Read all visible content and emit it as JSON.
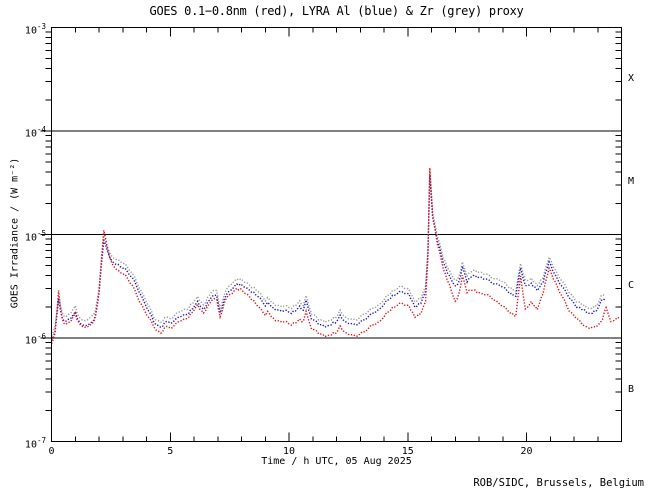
{
  "title": "GOES 0.1−0.8nm (red), LYRA Al (blue) & Zr (grey) proxy",
  "credit": "ROB/SIDC, Brussels, Belgium",
  "flare_classes": [
    "X",
    "M",
    "C",
    "B"
  ],
  "colors": {
    "goes_red": "#dd1111",
    "lyra_al_blue": "#1414cc",
    "lyra_zr_grey": "#9a9a9a",
    "axis": "#000000",
    "background": "#ffffff"
  },
  "chart_data": {
    "type": "line",
    "title": "GOES 0.1−0.8nm (red), LYRA Al (blue) & Zr (grey) proxy",
    "xlabel": "Time / h UTC, 05 Aug 2025",
    "ylabel": "GOES Irradiance / (W m⁻²)",
    "x_unit": "hours UTC",
    "xlim": [
      0,
      24
    ],
    "x_major_ticks": [
      0,
      5,
      10,
      15,
      20
    ],
    "x_tick_labels": [
      "0",
      "5",
      "10",
      "15",
      "20"
    ],
    "x_minor_step": 1,
    "y_scale": "log",
    "ylim": [
      1e-07,
      0.001
    ],
    "y_tick_exponents": [
      -3,
      -4,
      -5,
      -6,
      -7
    ],
    "hlines": [
      0.0001,
      1e-05,
      1e-06
    ],
    "grid": "off",
    "legend": "in-title",
    "flare_class_bands": {
      "X": [
        0.0001,
        0.001
      ],
      "M": [
        1e-05,
        0.0001
      ],
      "C": [
        1e-06,
        1e-05
      ],
      "B": [
        1e-07,
        1e-06
      ]
    },
    "series": [
      {
        "name": "LYRA Zr proxy",
        "color_key": "lyra_zr_grey",
        "points": [
          [
            0.0,
            1.05e-06
          ],
          [
            0.15,
            1.3e-06
          ],
          [
            0.3,
            2.45e-06
          ],
          [
            0.45,
            1.75e-06
          ],
          [
            0.6,
            1.6e-06
          ],
          [
            0.8,
            1.75e-06
          ],
          [
            1.0,
            2e-06
          ],
          [
            1.15,
            1.6e-06
          ],
          [
            1.4,
            1.45e-06
          ],
          [
            1.7,
            1.6e-06
          ],
          [
            1.85,
            1.85e-06
          ],
          [
            2.0,
            3e-06
          ],
          [
            2.1,
            5.5e-06
          ],
          [
            2.2,
            9.6e-06
          ],
          [
            2.35,
            7.7e-06
          ],
          [
            2.55,
            6.1e-06
          ],
          [
            2.8,
            5.6e-06
          ],
          [
            3.1,
            5.2e-06
          ],
          [
            3.4,
            4.2e-06
          ],
          [
            3.7,
            3.1e-06
          ],
          [
            4.0,
            2.25e-06
          ],
          [
            4.3,
            1.6e-06
          ],
          [
            4.6,
            1.4e-06
          ],
          [
            4.85,
            1.6e-06
          ],
          [
            5.0,
            1.55e-06
          ],
          [
            5.4,
            1.8e-06
          ],
          [
            5.7,
            1.9e-06
          ],
          [
            5.95,
            2.2e-06
          ],
          [
            6.15,
            2.45e-06
          ],
          [
            6.4,
            2.1e-06
          ],
          [
            6.75,
            2.8e-06
          ],
          [
            6.95,
            2.9e-06
          ],
          [
            7.1,
            1.95e-06
          ],
          [
            7.35,
            2.9e-06
          ],
          [
            7.6,
            3.4e-06
          ],
          [
            7.8,
            3.7e-06
          ],
          [
            8.05,
            3.6e-06
          ],
          [
            8.35,
            3.25e-06
          ],
          [
            8.7,
            2.8e-06
          ],
          [
            9.0,
            2.35e-06
          ],
          [
            9.1,
            2.45e-06
          ],
          [
            9.35,
            2.1e-06
          ],
          [
            9.7,
            2.05e-06
          ],
          [
            10.1,
            1.95e-06
          ],
          [
            10.45,
            2.25e-06
          ],
          [
            10.6,
            2e-06
          ],
          [
            10.72,
            2.55e-06
          ],
          [
            10.95,
            1.75e-06
          ],
          [
            11.25,
            1.5e-06
          ],
          [
            11.6,
            1.45e-06
          ],
          [
            11.95,
            1.55e-06
          ],
          [
            12.15,
            1.85e-06
          ],
          [
            12.4,
            1.55e-06
          ],
          [
            12.8,
            1.5e-06
          ],
          [
            13.2,
            1.7e-06
          ],
          [
            13.5,
            1.95e-06
          ],
          [
            13.8,
            2.05e-06
          ],
          [
            14.1,
            2.55e-06
          ],
          [
            14.45,
            2.9e-06
          ],
          [
            14.75,
            3.2e-06
          ],
          [
            15.05,
            2.9e-06
          ],
          [
            15.3,
            2.25e-06
          ],
          [
            15.55,
            2.45e-06
          ],
          [
            15.75,
            3.1e-06
          ],
          [
            15.85,
            7.2e-06
          ],
          [
            15.93,
            4.1e-05
          ],
          [
            16.05,
            1.6e-05
          ],
          [
            16.25,
            9.7e-06
          ],
          [
            16.5,
            5.9e-06
          ],
          [
            16.75,
            4.5e-06
          ],
          [
            17.0,
            3.5e-06
          ],
          [
            17.15,
            3.8e-06
          ],
          [
            17.3,
            5.4e-06
          ],
          [
            17.5,
            4e-06
          ],
          [
            17.75,
            4.5e-06
          ],
          [
            18.1,
            4.3e-06
          ],
          [
            18.5,
            3.9e-06
          ],
          [
            18.9,
            3.6e-06
          ],
          [
            19.3,
            3.1e-06
          ],
          [
            19.55,
            2.8e-06
          ],
          [
            19.75,
            5.3e-06
          ],
          [
            19.95,
            3.6e-06
          ],
          [
            20.2,
            3.7e-06
          ],
          [
            20.45,
            3.25e-06
          ],
          [
            20.7,
            3.9e-06
          ],
          [
            20.95,
            6e-06
          ],
          [
            21.2,
            4.6e-06
          ],
          [
            21.5,
            3.5e-06
          ],
          [
            21.8,
            2.8e-06
          ],
          [
            22.1,
            2.25e-06
          ],
          [
            22.45,
            2.05e-06
          ],
          [
            22.7,
            1.9e-06
          ],
          [
            22.95,
            2.05e-06
          ],
          [
            23.15,
            2.55e-06
          ],
          [
            23.3,
            2.7e-06
          ]
        ]
      },
      {
        "name": "LYRA Al proxy",
        "color_key": "lyra_al_blue",
        "points": [
          [
            0.0,
            9.5e-07
          ],
          [
            0.15,
            1.15e-06
          ],
          [
            0.3,
            2.3e-06
          ],
          [
            0.45,
            1.55e-06
          ],
          [
            0.6,
            1.45e-06
          ],
          [
            0.8,
            1.55e-06
          ],
          [
            1.0,
            1.75e-06
          ],
          [
            1.15,
            1.45e-06
          ],
          [
            1.4,
            1.3e-06
          ],
          [
            1.7,
            1.4e-06
          ],
          [
            1.85,
            1.65e-06
          ],
          [
            2.0,
            2.7e-06
          ],
          [
            2.1,
            5e-06
          ],
          [
            2.2,
            8.8e-06
          ],
          [
            2.35,
            7e-06
          ],
          [
            2.55,
            5.5e-06
          ],
          [
            2.8,
            5e-06
          ],
          [
            3.1,
            4.7e-06
          ],
          [
            3.4,
            3.8e-06
          ],
          [
            3.7,
            2.8e-06
          ],
          [
            4.0,
            2e-06
          ],
          [
            4.3,
            1.45e-06
          ],
          [
            4.6,
            1.25e-06
          ],
          [
            4.85,
            1.45e-06
          ],
          [
            5.0,
            1.4e-06
          ],
          [
            5.4,
            1.6e-06
          ],
          [
            5.7,
            1.7e-06
          ],
          [
            5.95,
            1.95e-06
          ],
          [
            6.15,
            2.2e-06
          ],
          [
            6.4,
            1.9e-06
          ],
          [
            6.75,
            2.5e-06
          ],
          [
            6.95,
            2.6e-06
          ],
          [
            7.1,
            1.75e-06
          ],
          [
            7.35,
            2.6e-06
          ],
          [
            7.6,
            3e-06
          ],
          [
            7.8,
            3.3e-06
          ],
          [
            8.05,
            3.2e-06
          ],
          [
            8.35,
            2.9e-06
          ],
          [
            8.7,
            2.5e-06
          ],
          [
            9.0,
            2.1e-06
          ],
          [
            9.1,
            2.2e-06
          ],
          [
            9.35,
            1.9e-06
          ],
          [
            9.7,
            1.85e-06
          ],
          [
            10.1,
            1.75e-06
          ],
          [
            10.45,
            2e-06
          ],
          [
            10.6,
            1.8e-06
          ],
          [
            10.72,
            2.3e-06
          ],
          [
            10.95,
            1.55e-06
          ],
          [
            11.25,
            1.35e-06
          ],
          [
            11.6,
            1.3e-06
          ],
          [
            11.95,
            1.4e-06
          ],
          [
            12.15,
            1.65e-06
          ],
          [
            12.4,
            1.4e-06
          ],
          [
            12.8,
            1.35e-06
          ],
          [
            13.2,
            1.5e-06
          ],
          [
            13.5,
            1.75e-06
          ],
          [
            13.8,
            1.85e-06
          ],
          [
            14.1,
            2.3e-06
          ],
          [
            14.45,
            2.6e-06
          ],
          [
            14.75,
            2.85e-06
          ],
          [
            15.05,
            2.6e-06
          ],
          [
            15.3,
            2e-06
          ],
          [
            15.55,
            2.2e-06
          ],
          [
            15.75,
            2.75e-06
          ],
          [
            15.85,
            6.5e-06
          ],
          [
            15.93,
            3.7e-05
          ],
          [
            16.05,
            1.45e-05
          ],
          [
            16.25,
            8.8e-06
          ],
          [
            16.5,
            5.3e-06
          ],
          [
            16.75,
            4e-06
          ],
          [
            17.0,
            3.1e-06
          ],
          [
            17.15,
            3.4e-06
          ],
          [
            17.3,
            4.9e-06
          ],
          [
            17.5,
            3.55e-06
          ],
          [
            17.75,
            4e-06
          ],
          [
            18.1,
            3.85e-06
          ],
          [
            18.5,
            3.5e-06
          ],
          [
            18.9,
            3.2e-06
          ],
          [
            19.3,
            2.75e-06
          ],
          [
            19.55,
            2.5e-06
          ],
          [
            19.75,
            4.8e-06
          ],
          [
            19.95,
            3.2e-06
          ],
          [
            20.2,
            3.3e-06
          ],
          [
            20.45,
            2.9e-06
          ],
          [
            20.7,
            3.5e-06
          ],
          [
            20.95,
            5.4e-06
          ],
          [
            21.2,
            4.1e-06
          ],
          [
            21.5,
            3.1e-06
          ],
          [
            21.8,
            2.5e-06
          ],
          [
            22.1,
            2e-06
          ],
          [
            22.45,
            1.85e-06
          ],
          [
            22.7,
            1.7e-06
          ],
          [
            22.95,
            1.85e-06
          ],
          [
            23.15,
            2.3e-06
          ],
          [
            23.3,
            2.4e-06
          ]
        ]
      },
      {
        "name": "GOES 0.1−0.8nm",
        "color_key": "goes_red",
        "points": [
          [
            0.0,
            8.8e-07
          ],
          [
            0.15,
            1.1e-06
          ],
          [
            0.3,
            2.8e-06
          ],
          [
            0.45,
            1.5e-06
          ],
          [
            0.6,
            1.35e-06
          ],
          [
            0.8,
            1.45e-06
          ],
          [
            1.0,
            1.7e-06
          ],
          [
            1.15,
            1.4e-06
          ],
          [
            1.4,
            1.25e-06
          ],
          [
            1.7,
            1.35e-06
          ],
          [
            1.85,
            1.6e-06
          ],
          [
            2.0,
            2.8e-06
          ],
          [
            2.1,
            5.5e-06
          ],
          [
            2.2,
            1.1e-05
          ],
          [
            2.35,
            7.5e-06
          ],
          [
            2.55,
            5.2e-06
          ],
          [
            2.8,
            4.4e-06
          ],
          [
            3.1,
            4.1e-06
          ],
          [
            3.4,
            3.2e-06
          ],
          [
            3.7,
            2.3e-06
          ],
          [
            4.0,
            1.7e-06
          ],
          [
            4.3,
            1.3e-06
          ],
          [
            4.6,
            1.1e-06
          ],
          [
            4.85,
            1.3e-06
          ],
          [
            5.0,
            1.25e-06
          ],
          [
            5.4,
            1.45e-06
          ],
          [
            5.7,
            1.55e-06
          ],
          [
            5.95,
            1.8e-06
          ],
          [
            6.15,
            2.05e-06
          ],
          [
            6.4,
            1.75e-06
          ],
          [
            6.75,
            2.3e-06
          ],
          [
            6.95,
            2.4e-06
          ],
          [
            7.1,
            1.6e-06
          ],
          [
            7.35,
            2.4e-06
          ],
          [
            7.6,
            2.75e-06
          ],
          [
            7.8,
            3e-06
          ],
          [
            8.05,
            2.85e-06
          ],
          [
            8.35,
            2.5e-06
          ],
          [
            8.7,
            2e-06
          ],
          [
            9.0,
            1.7e-06
          ],
          [
            9.1,
            1.8e-06
          ],
          [
            9.35,
            1.5e-06
          ],
          [
            9.7,
            1.45e-06
          ],
          [
            10.1,
            1.35e-06
          ],
          [
            10.45,
            1.5e-06
          ],
          [
            10.6,
            1.4e-06
          ],
          [
            10.72,
            1.8e-06
          ],
          [
            10.95,
            1.25e-06
          ],
          [
            11.25,
            1.1e-06
          ],
          [
            11.6,
            1.05e-06
          ],
          [
            11.95,
            1.1e-06
          ],
          [
            12.15,
            1.3e-06
          ],
          [
            12.4,
            1.1e-06
          ],
          [
            12.8,
            1.05e-06
          ],
          [
            13.2,
            1.15e-06
          ],
          [
            13.5,
            1.35e-06
          ],
          [
            13.8,
            1.4e-06
          ],
          [
            14.1,
            1.75e-06
          ],
          [
            14.45,
            2e-06
          ],
          [
            14.75,
            2.2e-06
          ],
          [
            15.05,
            2e-06
          ],
          [
            15.3,
            1.6e-06
          ],
          [
            15.55,
            1.75e-06
          ],
          [
            15.75,
            2.2e-06
          ],
          [
            15.85,
            6e-06
          ],
          [
            15.93,
            4.4e-05
          ],
          [
            16.05,
            1.5e-05
          ],
          [
            16.25,
            8.2e-06
          ],
          [
            16.5,
            4.6e-06
          ],
          [
            16.75,
            3.3e-06
          ],
          [
            17.0,
            2.2e-06
          ],
          [
            17.15,
            2.6e-06
          ],
          [
            17.3,
            4e-06
          ],
          [
            17.5,
            2.8e-06
          ],
          [
            17.75,
            2.9e-06
          ],
          [
            18.1,
            2.7e-06
          ],
          [
            18.5,
            2.5e-06
          ],
          [
            18.9,
            2.1e-06
          ],
          [
            19.3,
            1.8e-06
          ],
          [
            19.55,
            1.6e-06
          ],
          [
            19.75,
            4e-06
          ],
          [
            19.95,
            1.9e-06
          ],
          [
            20.2,
            2.2e-06
          ],
          [
            20.45,
            1.9e-06
          ],
          [
            20.7,
            2.75e-06
          ],
          [
            20.95,
            4.7e-06
          ],
          [
            21.2,
            3.5e-06
          ],
          [
            21.5,
            2.5e-06
          ],
          [
            21.8,
            1.85e-06
          ],
          [
            22.1,
            1.55e-06
          ],
          [
            22.45,
            1.3e-06
          ],
          [
            22.75,
            1.25e-06
          ],
          [
            23.0,
            1.3e-06
          ],
          [
            23.2,
            1.55e-06
          ],
          [
            23.35,
            2e-06
          ],
          [
            23.55,
            1.4e-06
          ],
          [
            23.75,
            1.55e-06
          ],
          [
            23.9,
            1.6e-06
          ]
        ]
      }
    ]
  }
}
